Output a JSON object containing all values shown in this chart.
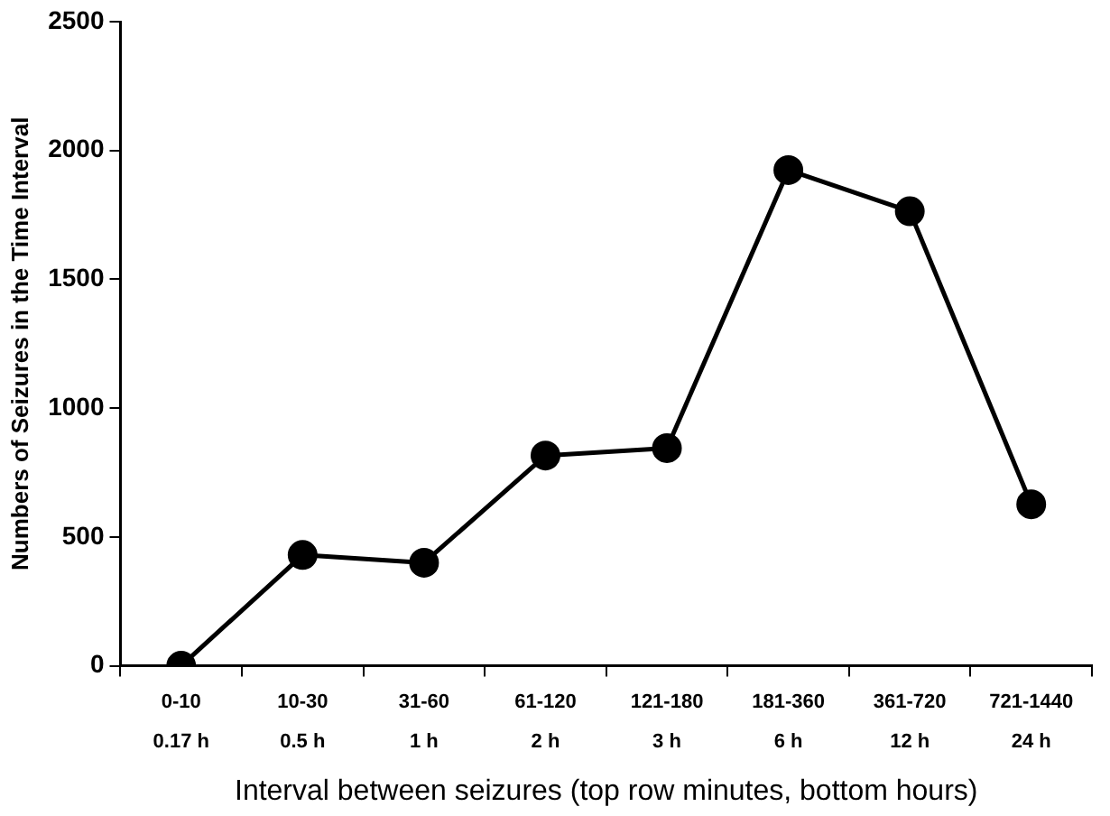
{
  "chart_data": {
    "type": "line",
    "ylabel": "Numbers of Seizures in the Time Interval",
    "xlabel": "Interval between seizures (top row minutes, bottom hours)",
    "categories": [
      "0-10\n0.17 h",
      "10-30\n0.5 h",
      "31-60\n1 h",
      "61-120\n2 h",
      "121-180\n3 h",
      "181-360\n6 h",
      "361-720\n12 h",
      "721-1440\n24 h"
    ],
    "series": [
      {
        "color": "#000000",
        "values": [
          0,
          430,
          400,
          816,
          845,
          1924,
          1764,
          627
        ]
      }
    ],
    "ylim": [
      0,
      2500
    ],
    "yticks": [
      0,
      500,
      1000,
      1500,
      2000,
      2500
    ],
    "grid": false,
    "legend": false,
    "marker": "circle",
    "line_style": "solid"
  }
}
